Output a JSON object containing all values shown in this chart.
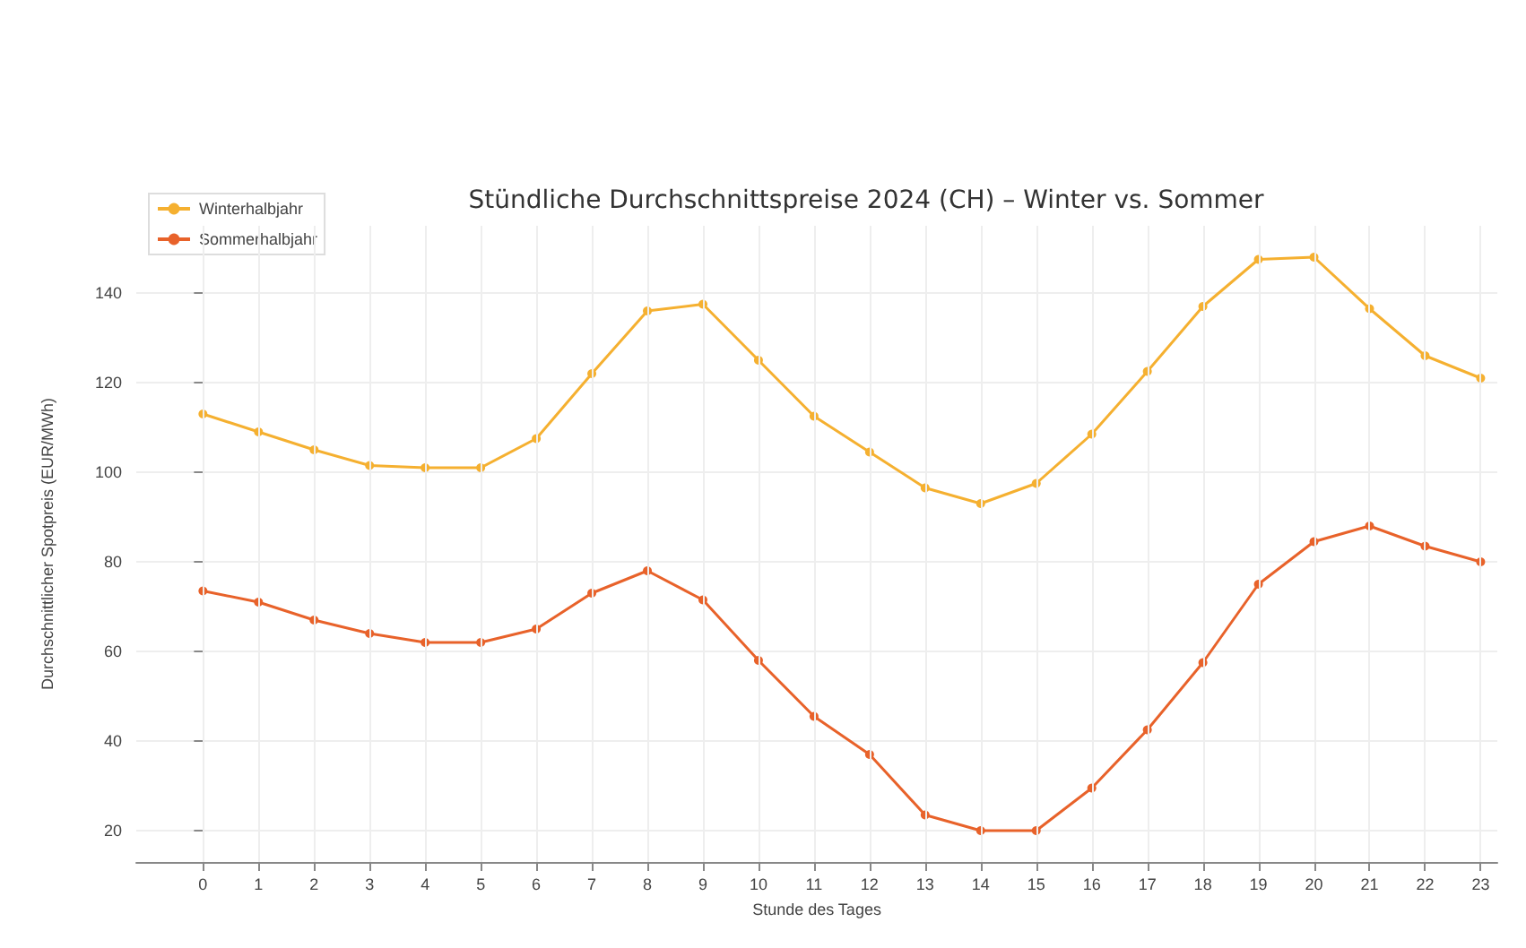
{
  "chart_data": {
    "type": "line",
    "title": "Stündliche Durchschnittspreise 2024 (CH) – Winter vs. Sommer",
    "xlabel": "Stunde des Tages",
    "ylabel": "Durchschnittlicher Spotpreis (EUR/MWh)",
    "x": [
      0,
      1,
      2,
      3,
      4,
      5,
      6,
      7,
      8,
      9,
      10,
      11,
      12,
      13,
      14,
      15,
      16,
      17,
      18,
      19,
      20,
      21,
      22,
      23
    ],
    "xlim": [
      -1.2,
      23.3
    ],
    "xticks": [
      0,
      1,
      2,
      3,
      4,
      5,
      6,
      7,
      8,
      9,
      10,
      11,
      12,
      13,
      14,
      15,
      16,
      17,
      18,
      19,
      20,
      21,
      22,
      23
    ],
    "series": [
      {
        "name": "Winterhalbjahr",
        "color": "#f5b030",
        "values": [
          113,
          109,
          105,
          101.5,
          101,
          101,
          107.5,
          122,
          136,
          137.5,
          125,
          112.5,
          104.5,
          96.5,
          93,
          97.5,
          108.5,
          122.5,
          137,
          147.5,
          148,
          136.5,
          126,
          121
        ]
      },
      {
        "name": "Sommerhalbjahr",
        "color": "#e8622a",
        "values": [
          73.5,
          71,
          67,
          64,
          62,
          62,
          65,
          73,
          78,
          71.5,
          58,
          45.5,
          37,
          23.5,
          20,
          20,
          29.5,
          42.5,
          57.5,
          75,
          84.5,
          88,
          83.5,
          80
        ]
      }
    ],
    "ylim": [
      13,
      155
    ],
    "yticks": [
      20,
      40,
      60,
      80,
      100,
      120,
      140
    ],
    "grid": true,
    "legend": "top left",
    "marker": "circle",
    "line_style": "solid"
  }
}
